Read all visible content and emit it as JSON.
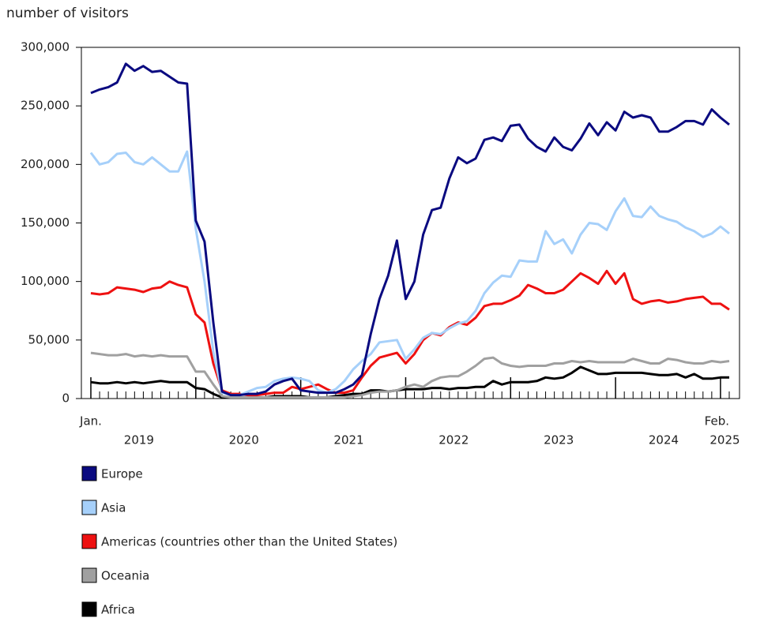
{
  "chart_data": {
    "type": "line",
    "y_label": "number of visitors",
    "categories": [
      "Jan.",
      null,
      null,
      null,
      null,
      null,
      null,
      null,
      null,
      null,
      null,
      null,
      null,
      null,
      null,
      null,
      null,
      null,
      null,
      null,
      null,
      null,
      null,
      null,
      null,
      null,
      null,
      null,
      null,
      null,
      null,
      null,
      null,
      null,
      null,
      null,
      null,
      null,
      null,
      null,
      null,
      null,
      null,
      null,
      null,
      null,
      null,
      null,
      null,
      null,
      null,
      null,
      null,
      null,
      null,
      null,
      null,
      null,
      null,
      null,
      null,
      null,
      null,
      null,
      null,
      null,
      null,
      null,
      null,
      null,
      null,
      null,
      null,
      "Feb."
    ],
    "years": [
      "2019",
      "2020",
      "2021",
      "2022",
      "2023",
      "2024",
      "2025"
    ],
    "ylim": [
      0,
      300000
    ],
    "yticks": [
      {
        "value": 0,
        "label": "0"
      },
      {
        "value": 50000,
        "label": "50,000"
      },
      {
        "value": 100000,
        "label": "100,000"
      },
      {
        "value": 150000,
        "label": "150,000"
      },
      {
        "value": 200000,
        "label": "200,000"
      },
      {
        "value": 250000,
        "label": "250,000"
      },
      {
        "value": 300000,
        "label": "300,000"
      }
    ],
    "series": [
      {
        "name": "Europe",
        "color": "#0a0a80",
        "values": [
          261000,
          264000,
          266000,
          270000,
          286000,
          280000,
          284000,
          279000,
          280000,
          275000,
          270000,
          269000,
          152000,
          134000,
          65000,
          6000,
          3000,
          3000,
          4000,
          4000,
          6000,
          12000,
          15000,
          17000,
          7000,
          6000,
          5000,
          5000,
          5000,
          8000,
          12000,
          20000,
          55000,
          85000,
          105000,
          135000,
          85000,
          100000,
          140000,
          161000,
          163000,
          188000,
          206000,
          201000,
          205000,
          221000,
          223000,
          220000,
          233000,
          234000,
          222000,
          215000,
          211000,
          223000,
          215000,
          212000,
          222000,
          235000,
          225000,
          236000,
          229000,
          245000,
          240000,
          242000,
          240000,
          228000,
          228000,
          232000,
          237000,
          237000,
          234000,
          247000,
          240000,
          234000
        ]
      },
      {
        "name": "Asia",
        "color": "#a6d0fa",
        "values": [
          210000,
          200000,
          202000,
          209000,
          210000,
          202000,
          200000,
          206000,
          200000,
          194000,
          194000,
          211000,
          145000,
          100000,
          40000,
          5000,
          3000,
          3000,
          6000,
          9000,
          10000,
          15000,
          17000,
          18000,
          17000,
          15000,
          7000,
          5000,
          8000,
          15000,
          25000,
          32000,
          38000,
          48000,
          49000,
          50000,
          34000,
          42000,
          52000,
          56000,
          55000,
          60000,
          64000,
          66000,
          75000,
          90000,
          99000,
          105000,
          104000,
          118000,
          117000,
          117000,
          143000,
          132000,
          136000,
          124000,
          140000,
          150000,
          149000,
          144000,
          160000,
          171000,
          156000,
          155000,
          164000,
          156000,
          153000,
          151000,
          146000,
          143000,
          138000,
          141000,
          147000,
          141000
        ]
      },
      {
        "name": "Americas (countries other than the United States)",
        "color": "#ee1111",
        "values": [
          90000,
          89000,
          90000,
          95000,
          94000,
          93000,
          91000,
          94000,
          95000,
          100000,
          97000,
          95000,
          72000,
          65000,
          30000,
          7000,
          4000,
          4000,
          3000,
          3000,
          4000,
          5000,
          5000,
          10000,
          8000,
          10000,
          12000,
          8000,
          5000,
          5000,
          7000,
          18000,
          28000,
          35000,
          37000,
          39000,
          30000,
          38000,
          50000,
          56000,
          54000,
          61000,
          65000,
          63000,
          69000,
          79000,
          81000,
          81000,
          84000,
          88000,
          97000,
          94000,
          90000,
          90000,
          93000,
          100000,
          107000,
          103000,
          98000,
          109000,
          98000,
          107000,
          85000,
          81000,
          83000,
          84000,
          82000,
          83000,
          85000,
          86000,
          87000,
          81000,
          81000,
          76000
        ]
      },
      {
        "name": "Oceania",
        "color": "#a0a0a0",
        "values": [
          39000,
          38000,
          37000,
          37000,
          38000,
          36000,
          37000,
          36000,
          37000,
          36000,
          36000,
          36000,
          23000,
          23000,
          12000,
          2000,
          1000,
          1000,
          1000,
          1000,
          1000,
          1000,
          1000,
          1000,
          1000,
          1000,
          1000,
          1000,
          1000,
          1000,
          2000,
          3000,
          5000,
          6000,
          6000,
          7000,
          10000,
          12000,
          10000,
          15000,
          18000,
          19000,
          19000,
          23000,
          28000,
          34000,
          35000,
          30000,
          28000,
          27000,
          28000,
          28000,
          28000,
          30000,
          30000,
          32000,
          31000,
          32000,
          31000,
          31000,
          31000,
          31000,
          34000,
          32000,
          30000,
          30000,
          34000,
          33000,
          31000,
          30000,
          30000,
          32000,
          31000,
          32000
        ]
      },
      {
        "name": "Africa",
        "color": "#000000",
        "values": [
          14000,
          13000,
          13000,
          14000,
          13000,
          14000,
          13000,
          14000,
          15000,
          14000,
          14000,
          14000,
          9000,
          8000,
          4000,
          1000,
          1000,
          1000,
          1000,
          1000,
          1000,
          2000,
          2000,
          2000,
          2000,
          1000,
          1000,
          1000,
          2000,
          3000,
          4000,
          4000,
          7000,
          7000,
          6000,
          7000,
          8000,
          8000,
          8000,
          9000,
          9000,
          8000,
          9000,
          9000,
          10000,
          10000,
          15000,
          12000,
          14000,
          14000,
          14000,
          15000,
          18000,
          17000,
          18000,
          22000,
          27000,
          24000,
          21000,
          21000,
          22000,
          22000,
          22000,
          22000,
          21000,
          20000,
          20000,
          21000,
          18000,
          21000,
          17000,
          17000,
          18000,
          18000
        ]
      }
    ]
  }
}
